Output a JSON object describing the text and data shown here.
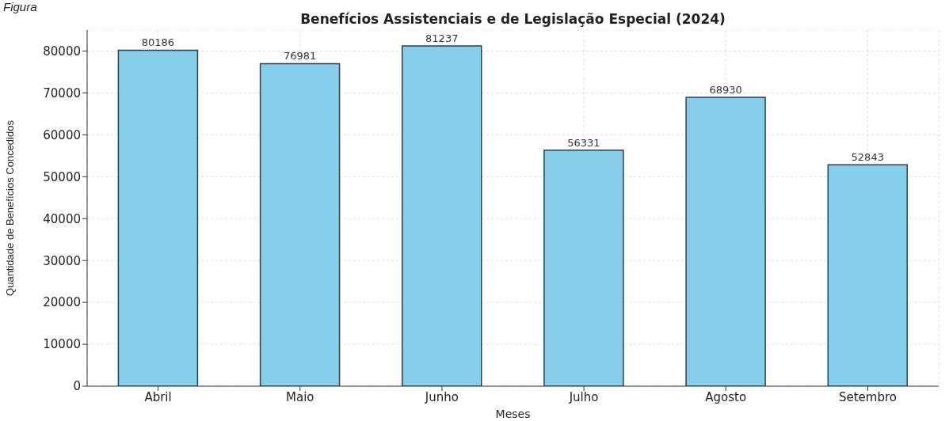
{
  "chart_data": {
    "type": "bar",
    "title": "Benefícios Assistenciais e de Legislação Especial (2024)",
    "xlabel": "Meses",
    "ylabel": "Quantidade de Benefícios Concedidos",
    "annotations": [
      "Figura"
    ],
    "categories": [
      "Abril",
      "Maio",
      "Junho",
      "Julho",
      "Agosto",
      "Setembro"
    ],
    "values": [
      80186,
      76981,
      81237,
      56331,
      68930,
      52843
    ],
    "color": "#87ceeb",
    "ylim": [
      0,
      85000
    ],
    "yticks": [
      0,
      10000,
      20000,
      30000,
      40000,
      50000,
      60000,
      70000,
      80000
    ],
    "grid": true,
    "data_labels": true
  }
}
